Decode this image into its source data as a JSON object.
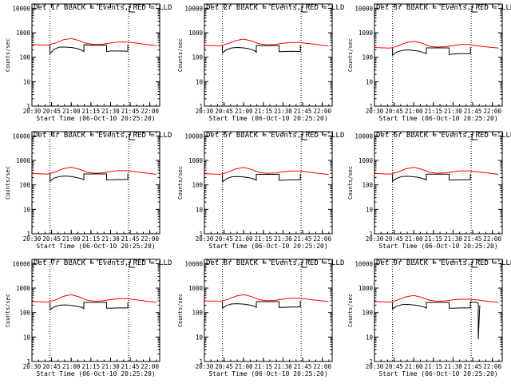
{
  "colors": {
    "background": "#ffffff",
    "axes": "#000000",
    "events": "#000000",
    "lld": "#ff0000"
  },
  "common": {
    "xlabel": "Start Time (06-Oct-10 20:25:20)",
    "ylabel": "Counts/sec",
    "xticklabels": [
      "20:30",
      "20:45",
      "21:00",
      "21:15",
      "21:30",
      "21:45",
      "22:00"
    ],
    "yticklabels": [
      "1",
      "10",
      "100",
      "1000",
      "10000"
    ]
  },
  "chart_data": [
    {
      "type": "line",
      "title": "Det 1r BLACK = Events, RED = LLD",
      "xlabel": "Start Time (06-Oct-10 20:25:20)",
      "ylabel": "Counts/sec",
      "xlim": [
        20.5,
        22.125
      ],
      "ylim": [
        1,
        15000
      ],
      "yscale": "log",
      "x_axis_unit": "decimal hours",
      "vlines": [
        20.73,
        21.73
      ],
      "series": [
        {
          "name": "Events",
          "color": "#000000",
          "x": [
            20.73,
            20.73,
            20.78,
            20.85,
            20.92,
            21.0,
            21.07,
            21.14,
            21.16,
            21.16,
            21.3,
            21.45,
            21.45,
            21.5,
            21.6,
            21.72,
            21.72
          ],
          "y": [
            320,
            140,
            210,
            260,
            260,
            250,
            230,
            190,
            170,
            320,
            310,
            310,
            170,
            180,
            180,
            175,
            330
          ]
        },
        {
          "name": "LLD",
          "color": "#ff0000",
          "x": [
            20.5,
            20.6,
            20.7,
            20.8,
            20.9,
            21.0,
            21.1,
            21.2,
            21.3,
            21.4,
            21.5,
            21.6,
            21.7,
            21.8,
            21.9,
            22.0,
            22.08
          ],
          "y": [
            330,
            320,
            310,
            380,
            520,
            580,
            480,
            360,
            330,
            340,
            380,
            420,
            420,
            390,
            350,
            320,
            300
          ]
        }
      ]
    },
    {
      "type": "line",
      "title": "Det 2r BLACK = Events, RED = LLD",
      "xlabel": "Start Time (06-Oct-10 20:25:20)",
      "ylabel": "Counts/sec",
      "xlim": [
        20.5,
        22.125
      ],
      "ylim": [
        1,
        15000
      ],
      "yscale": "log",
      "x_axis_unit": "decimal hours",
      "vlines": [
        20.73,
        21.73
      ],
      "series": [
        {
          "name": "Events",
          "color": "#000000",
          "x": [
            20.73,
            20.73,
            20.78,
            20.85,
            20.92,
            21.0,
            21.07,
            21.14,
            21.16,
            21.16,
            21.3,
            21.45,
            21.45,
            21.5,
            21.6,
            21.72,
            21.72
          ],
          "y": [
            300,
            150,
            200,
            240,
            250,
            240,
            220,
            185,
            160,
            300,
            300,
            300,
            170,
            170,
            175,
            170,
            310
          ]
        },
        {
          "name": "LLD",
          "color": "#ff0000",
          "x": [
            20.5,
            20.6,
            20.7,
            20.8,
            20.9,
            21.0,
            21.1,
            21.2,
            21.3,
            21.4,
            21.5,
            21.6,
            21.7,
            21.8,
            21.9,
            22.0,
            22.08
          ],
          "y": [
            310,
            300,
            290,
            360,
            480,
            550,
            460,
            350,
            320,
            330,
            370,
            400,
            400,
            370,
            340,
            310,
            290
          ]
        }
      ]
    },
    {
      "type": "line",
      "title": "Det 3r BLACK = Events, RED = LLD",
      "xlabel": "Start Time (06-Oct-10 20:25:20)",
      "ylabel": "Counts/sec",
      "xlim": [
        20.5,
        22.125
      ],
      "ylim": [
        1,
        15000
      ],
      "yscale": "log",
      "x_axis_unit": "decimal hours",
      "vlines": [
        20.73,
        21.73
      ],
      "series": [
        {
          "name": "Events",
          "color": "#000000",
          "x": [
            20.73,
            20.73,
            20.78,
            20.85,
            20.92,
            21.0,
            21.07,
            21.14,
            21.16,
            21.16,
            21.3,
            21.45,
            21.45,
            21.5,
            21.6,
            21.72,
            21.72
          ],
          "y": [
            240,
            120,
            160,
            190,
            200,
            190,
            175,
            150,
            140,
            240,
            240,
            240,
            130,
            135,
            140,
            140,
            250
          ]
        },
        {
          "name": "LLD",
          "color": "#ff0000",
          "x": [
            20.5,
            20.6,
            20.7,
            20.8,
            20.9,
            21.0,
            21.1,
            21.2,
            21.3,
            21.4,
            21.5,
            21.6,
            21.7,
            21.8,
            21.9,
            22.0,
            22.08
          ],
          "y": [
            250,
            240,
            235,
            290,
            390,
            450,
            380,
            280,
            260,
            270,
            300,
            330,
            330,
            300,
            270,
            250,
            235
          ]
        }
      ]
    },
    {
      "type": "line",
      "title": "Det 4r BLACK = Events, RED = LLD",
      "xlabel": "Start Time (06-Oct-10 20:25:20)",
      "ylabel": "Counts/sec",
      "xlim": [
        20.5,
        22.125
      ],
      "ylim": [
        1,
        15000
      ],
      "yscale": "log",
      "x_axis_unit": "decimal hours",
      "vlines": [
        20.73,
        21.73
      ],
      "series": [
        {
          "name": "Events",
          "color": "#000000",
          "x": [
            20.73,
            20.73,
            20.78,
            20.85,
            20.92,
            21.0,
            21.07,
            21.14,
            21.16,
            21.16,
            21.3,
            21.45,
            21.45,
            21.5,
            21.6,
            21.72,
            21.72
          ],
          "y": [
            280,
            140,
            190,
            220,
            230,
            220,
            200,
            175,
            160,
            280,
            280,
            280,
            160,
            160,
            165,
            165,
            290
          ]
        },
        {
          "name": "LLD",
          "color": "#ff0000",
          "x": [
            20.5,
            20.6,
            20.7,
            20.8,
            20.9,
            21.0,
            21.1,
            21.2,
            21.3,
            21.4,
            21.5,
            21.6,
            21.7,
            21.8,
            21.9,
            22.0,
            22.08
          ],
          "y": [
            290,
            285,
            275,
            340,
            460,
            530,
            440,
            330,
            300,
            310,
            350,
            380,
            380,
            350,
            320,
            290,
            270
          ]
        }
      ]
    },
    {
      "type": "line",
      "title": "Det 5r BLACK = Events, RED = LLD",
      "xlabel": "Start Time (06-Oct-10 20:25:20)",
      "ylabel": "Counts/sec",
      "xlim": [
        20.5,
        22.125
      ],
      "ylim": [
        1,
        15000
      ],
      "yscale": "log",
      "x_axis_unit": "decimal hours",
      "vlines": [
        20.73,
        21.73
      ],
      "series": [
        {
          "name": "Events",
          "color": "#000000",
          "x": [
            20.73,
            20.73,
            20.78,
            20.85,
            20.92,
            21.0,
            21.07,
            21.14,
            21.16,
            21.16,
            21.3,
            21.45,
            21.45,
            21.5,
            21.6,
            21.72,
            21.72
          ],
          "y": [
            270,
            135,
            180,
            215,
            220,
            210,
            195,
            170,
            155,
            270,
            270,
            270,
            155,
            155,
            160,
            160,
            280
          ]
        },
        {
          "name": "LLD",
          "color": "#ff0000",
          "x": [
            20.5,
            20.6,
            20.7,
            20.8,
            20.9,
            21.0,
            21.1,
            21.2,
            21.3,
            21.4,
            21.5,
            21.6,
            21.7,
            21.8,
            21.9,
            22.0,
            22.08
          ],
          "y": [
            285,
            280,
            270,
            330,
            450,
            520,
            430,
            320,
            295,
            305,
            340,
            370,
            370,
            340,
            310,
            285,
            265
          ]
        }
      ]
    },
    {
      "type": "line",
      "title": "Det 6r BLACK = Events, RED = LLD",
      "xlabel": "Start Time (06-Oct-10 20:25:20)",
      "ylabel": "Counts/sec",
      "xlim": [
        20.5,
        22.125
      ],
      "ylim": [
        1,
        15000
      ],
      "yscale": "log",
      "x_axis_unit": "decimal hours",
      "vlines": [
        20.73,
        21.73
      ],
      "series": [
        {
          "name": "Events",
          "color": "#000000",
          "x": [
            20.73,
            20.73,
            20.78,
            20.85,
            20.92,
            21.0,
            21.07,
            21.14,
            21.16,
            21.16,
            21.3,
            21.45,
            21.45,
            21.5,
            21.6,
            21.72,
            21.72
          ],
          "y": [
            275,
            140,
            185,
            220,
            225,
            215,
            200,
            172,
            158,
            275,
            275,
            275,
            158,
            158,
            162,
            162,
            285
          ]
        },
        {
          "name": "LLD",
          "color": "#ff0000",
          "x": [
            20.5,
            20.6,
            20.7,
            20.8,
            20.9,
            21.0,
            21.1,
            21.2,
            21.3,
            21.4,
            21.5,
            21.6,
            21.7,
            21.8,
            21.9,
            22.0,
            22.08
          ],
          "y": [
            290,
            285,
            275,
            335,
            455,
            525,
            435,
            325,
            300,
            310,
            345,
            375,
            375,
            345,
            315,
            290,
            270
          ]
        }
      ]
    },
    {
      "type": "line",
      "title": "Det 7r BLACK = Events, RED = LLD",
      "xlabel": "Start Time (06-Oct-10 20:25:20)",
      "ylabel": "Counts/sec",
      "xlim": [
        20.5,
        22.125
      ],
      "ylim": [
        1,
        15000
      ],
      "yscale": "log",
      "x_axis_unit": "decimal hours",
      "vlines": [
        20.73,
        21.73
      ],
      "series": [
        {
          "name": "Events",
          "color": "#000000",
          "x": [
            20.73,
            20.73,
            20.78,
            20.85,
            20.92,
            21.0,
            21.07,
            21.14,
            21.16,
            21.16,
            21.3,
            21.45,
            21.45,
            21.5,
            21.6,
            21.72,
            21.72
          ],
          "y": [
            260,
            130,
            170,
            200,
            205,
            195,
            180,
            160,
            145,
            260,
            260,
            260,
            150,
            150,
            155,
            155,
            270
          ]
        },
        {
          "name": "LLD",
          "color": "#ff0000",
          "x": [
            20.5,
            20.6,
            20.7,
            20.8,
            20.9,
            21.0,
            21.1,
            21.2,
            21.3,
            21.4,
            21.5,
            21.6,
            21.7,
            21.8,
            21.9,
            22.0,
            22.08
          ],
          "y": [
            280,
            275,
            265,
            330,
            460,
            540,
            440,
            320,
            290,
            300,
            340,
            370,
            370,
            340,
            310,
            280,
            260
          ]
        }
      ]
    },
    {
      "type": "line",
      "title": "Det 8r BLACK = Events, RED = LLD",
      "xlabel": "Start Time (06-Oct-10 20:25:20)",
      "ylabel": "Counts/sec",
      "xlim": [
        20.5,
        22.125
      ],
      "ylim": [
        1,
        15000
      ],
      "yscale": "log",
      "x_axis_unit": "decimal hours",
      "vlines": [
        20.73,
        21.73
      ],
      "series": [
        {
          "name": "Events",
          "color": "#000000",
          "x": [
            20.73,
            20.73,
            20.78,
            20.85,
            20.92,
            21.0,
            21.07,
            21.14,
            21.16,
            21.16,
            21.3,
            21.45,
            21.45,
            21.5,
            21.6,
            21.72,
            21.72
          ],
          "y": [
            280,
            150,
            195,
            225,
            230,
            222,
            205,
            178,
            162,
            280,
            280,
            280,
            162,
            162,
            168,
            168,
            290
          ]
        },
        {
          "name": "LLD",
          "color": "#ff0000",
          "x": [
            20.5,
            20.6,
            20.7,
            20.8,
            20.9,
            21.0,
            21.1,
            21.2,
            21.3,
            21.4,
            21.5,
            21.6,
            21.7,
            21.8,
            21.9,
            22.0,
            22.08
          ],
          "y": [
            300,
            295,
            285,
            345,
            470,
            545,
            450,
            335,
            305,
            315,
            355,
            385,
            385,
            355,
            325,
            300,
            280
          ]
        }
      ]
    },
    {
      "type": "line",
      "title": "Det 9r BLACK = Events, RED = LLD",
      "xlabel": "Start Time (06-Oct-10 20:25:20)",
      "ylabel": "Counts/sec",
      "xlim": [
        20.5,
        22.125
      ],
      "ylim": [
        1,
        15000
      ],
      "yscale": "log",
      "x_axis_unit": "decimal hours",
      "vlines": [
        20.73,
        21.73
      ],
      "series": [
        {
          "name": "Events",
          "color": "#000000",
          "x": [
            20.73,
            20.73,
            20.78,
            20.85,
            20.92,
            21.0,
            21.07,
            21.14,
            21.16,
            21.16,
            21.3,
            21.45,
            21.45,
            21.5,
            21.6,
            21.72,
            21.72,
            21.8,
            21.82,
            21.82,
            21.84
          ],
          "y": [
            260,
            140,
            180,
            210,
            215,
            205,
            190,
            165,
            150,
            260,
            260,
            260,
            150,
            150,
            155,
            155,
            270,
            260,
            250,
            8,
            200
          ]
        },
        {
          "name": "LLD",
          "color": "#ff0000",
          "x": [
            20.5,
            20.6,
            20.7,
            20.8,
            20.9,
            21.0,
            21.1,
            21.2,
            21.3,
            21.4,
            21.5,
            21.6,
            21.7,
            21.8,
            21.9,
            22.0,
            22.08
          ],
          "y": [
            280,
            275,
            265,
            330,
            440,
            500,
            420,
            320,
            290,
            300,
            330,
            350,
            350,
            330,
            300,
            275,
            260
          ]
        }
      ]
    }
  ]
}
